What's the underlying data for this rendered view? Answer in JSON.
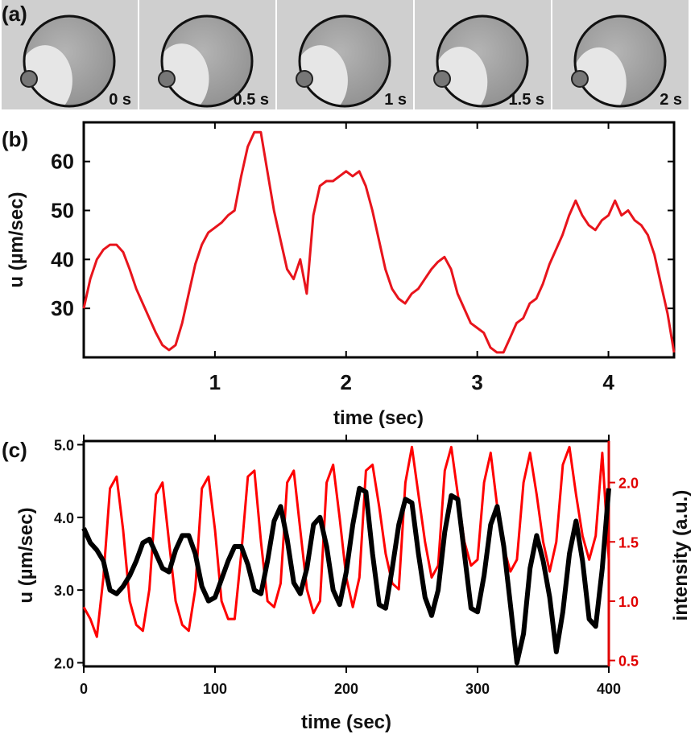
{
  "panels": {
    "a": {
      "label": "(a)",
      "frames": [
        {
          "time": "0 s"
        },
        {
          "time": "0.5 s"
        },
        {
          "time": "1 s"
        },
        {
          "time": "1.5 s"
        },
        {
          "time": "2 s"
        }
      ]
    },
    "b": {
      "label": "(b)"
    },
    "c": {
      "label": "(c)"
    }
  },
  "colors": {
    "velocity_b": "#e8141c",
    "velocity_c": "#000000",
    "intensity": "#ff0000",
    "frame_bg": "#cfcfcf",
    "drop_fill": "#a8a8a8",
    "drop_light": "#e6e6e6"
  },
  "chart_data": [
    {
      "type": "line",
      "id": "b",
      "xlabel": "time (sec)",
      "ylabel": "u (µm/sec)",
      "xlim": [
        0,
        4.5
      ],
      "ylim": [
        20,
        68
      ],
      "xticks": [
        1,
        2,
        3,
        4
      ],
      "yticks": [
        30,
        40,
        50,
        60
      ],
      "series": [
        {
          "color": "#e8141c",
          "x": [
            0.0,
            0.05,
            0.1,
            0.15,
            0.2,
            0.25,
            0.3,
            0.35,
            0.4,
            0.45,
            0.5,
            0.55,
            0.6,
            0.65,
            0.7,
            0.75,
            0.8,
            0.85,
            0.9,
            0.95,
            1.0,
            1.05,
            1.1,
            1.15,
            1.2,
            1.25,
            1.3,
            1.35,
            1.4,
            1.45,
            1.5,
            1.55,
            1.6,
            1.65,
            1.7,
            1.75,
            1.8,
            1.85,
            1.9,
            1.95,
            2.0,
            2.05,
            2.1,
            2.15,
            2.2,
            2.25,
            2.3,
            2.35,
            2.4,
            2.45,
            2.5,
            2.55,
            2.6,
            2.65,
            2.7,
            2.75,
            2.8,
            2.85,
            2.9,
            2.95,
            3.0,
            3.05,
            3.1,
            3.15,
            3.2,
            3.25,
            3.3,
            3.35,
            3.4,
            3.45,
            3.5,
            3.55,
            3.6,
            3.65,
            3.7,
            3.75,
            3.8,
            3.85,
            3.9,
            3.95,
            4.0,
            4.05,
            4.1,
            4.15,
            4.2,
            4.25,
            4.3,
            4.35,
            4.4,
            4.45,
            4.5
          ],
          "values": [
            30,
            36,
            40,
            42,
            43,
            43,
            41.5,
            38,
            34,
            31,
            28,
            25,
            22.5,
            21.5,
            22.5,
            27,
            33,
            39,
            43,
            45.5,
            46.5,
            47.5,
            49,
            50,
            57,
            63,
            66,
            66,
            58,
            50,
            44,
            38,
            36,
            40,
            33,
            49,
            55,
            56,
            56,
            57,
            58,
            57,
            58,
            55,
            50,
            44,
            38,
            34,
            32,
            31,
            33,
            34,
            36,
            38,
            39.5,
            40.5,
            38,
            33,
            30,
            27,
            26,
            25,
            22,
            21,
            21,
            24,
            27,
            28,
            31,
            32,
            35,
            39,
            42,
            45,
            49,
            52,
            49,
            47,
            46,
            48,
            49,
            52,
            49,
            50,
            48,
            47,
            45,
            41,
            35,
            29,
            21
          ]
        }
      ]
    },
    {
      "type": "line",
      "id": "c",
      "xlabel": "time (sec)",
      "ylabel": "u (µm/sec)",
      "ylabel_right": "intensity (a.u.)",
      "xlim": [
        0,
        400
      ],
      "ylim": [
        1.95,
        5.05
      ],
      "ylim_right": [
        0.45,
        2.35
      ],
      "xticks": [
        0,
        100,
        200,
        300,
        400
      ],
      "yticks": [
        2.0,
        3.0,
        4.0,
        5.0
      ],
      "yticks_right": [
        0.5,
        1.0,
        1.5,
        2.0
      ],
      "series": [
        {
          "axis": "left",
          "color": "#000000",
          "x": [
            0,
            5,
            10,
            15,
            20,
            25,
            30,
            35,
            40,
            45,
            50,
            55,
            60,
            65,
            70,
            75,
            80,
            85,
            90,
            95,
            100,
            105,
            110,
            115,
            120,
            125,
            130,
            135,
            140,
            145,
            150,
            155,
            160,
            165,
            170,
            175,
            180,
            185,
            190,
            195,
            200,
            205,
            210,
            215,
            220,
            225,
            230,
            235,
            240,
            245,
            250,
            255,
            260,
            265,
            270,
            275,
            280,
            285,
            290,
            295,
            300,
            305,
            310,
            315,
            320,
            325,
            330,
            335,
            340,
            345,
            350,
            355,
            360,
            365,
            370,
            375,
            380,
            385,
            390,
            395,
            400
          ],
          "values": [
            3.85,
            3.65,
            3.55,
            3.4,
            3.0,
            2.95,
            3.05,
            3.2,
            3.4,
            3.65,
            3.7,
            3.5,
            3.3,
            3.25,
            3.55,
            3.75,
            3.75,
            3.5,
            3.05,
            2.85,
            2.9,
            3.15,
            3.4,
            3.6,
            3.6,
            3.35,
            3.0,
            2.95,
            3.4,
            3.95,
            4.15,
            3.7,
            3.1,
            2.95,
            3.3,
            3.9,
            4.0,
            3.6,
            3.0,
            2.8,
            3.25,
            3.9,
            4.4,
            4.35,
            3.5,
            2.8,
            2.75,
            3.3,
            3.9,
            4.25,
            4.2,
            3.5,
            2.9,
            2.65,
            3.0,
            3.8,
            4.3,
            4.25,
            3.5,
            2.75,
            2.7,
            3.2,
            3.9,
            4.15,
            3.6,
            2.8,
            2.0,
            2.4,
            3.3,
            3.75,
            3.4,
            2.9,
            2.15,
            2.7,
            3.5,
            3.95,
            3.4,
            2.6,
            2.5,
            3.3,
            4.4
          ]
        },
        {
          "axis": "right",
          "color": "#ff0000",
          "x": [
            0,
            5,
            10,
            15,
            20,
            25,
            30,
            35,
            40,
            45,
            50,
            55,
            60,
            65,
            70,
            75,
            80,
            85,
            90,
            95,
            100,
            105,
            110,
            115,
            120,
            125,
            130,
            135,
            140,
            145,
            150,
            155,
            160,
            165,
            170,
            175,
            180,
            185,
            190,
            195,
            200,
            205,
            210,
            215,
            220,
            225,
            230,
            235,
            240,
            245,
            250,
            255,
            260,
            265,
            270,
            275,
            280,
            285,
            290,
            295,
            300,
            305,
            310,
            315,
            320,
            325,
            330,
            335,
            340,
            345,
            350,
            355,
            360,
            365,
            370,
            375,
            380,
            385,
            390,
            395,
            400
          ],
          "values": [
            0.95,
            0.85,
            0.7,
            1.2,
            1.95,
            2.05,
            1.6,
            1.0,
            0.8,
            0.75,
            1.1,
            1.9,
            2.0,
            1.5,
            1.0,
            0.8,
            0.75,
            1.1,
            1.95,
            2.05,
            1.6,
            1.0,
            0.85,
            0.85,
            1.4,
            2.05,
            2.1,
            1.5,
            1.0,
            0.95,
            1.15,
            2.0,
            2.1,
            1.6,
            1.1,
            0.9,
            1.0,
            2.0,
            2.15,
            1.7,
            1.2,
            0.95,
            1.2,
            2.1,
            2.15,
            1.8,
            1.4,
            1.15,
            1.1,
            2.0,
            2.3,
            1.9,
            1.5,
            1.2,
            1.3,
            2.1,
            2.3,
            1.9,
            1.5,
            1.3,
            1.35,
            2.0,
            2.25,
            1.8,
            1.45,
            1.25,
            1.35,
            2.0,
            2.25,
            1.9,
            1.5,
            1.25,
            1.5,
            2.15,
            2.3,
            1.9,
            1.55,
            1.35,
            1.55,
            2.25,
            1.35
          ]
        }
      ]
    }
  ]
}
